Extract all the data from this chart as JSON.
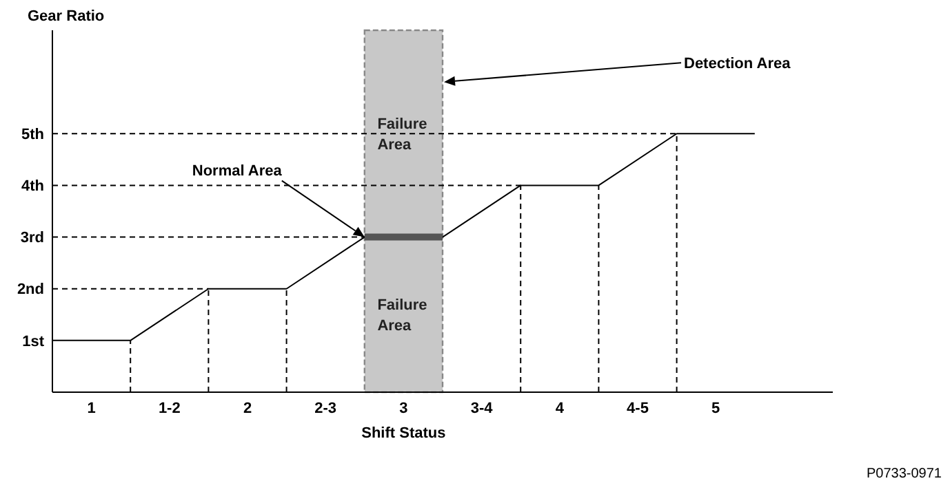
{
  "chart_data": {
    "type": "line",
    "ylabel": "Gear Ratio",
    "xlabel": "Shift Status",
    "x": [
      0.75,
      1.25,
      1.75,
      2.25,
      2.75,
      3.25,
      3.75,
      4.25,
      4.75,
      5.25
    ],
    "series": [
      {
        "color": "#000000",
        "values": [
          1,
          1,
          2,
          2,
          3,
          3,
          4,
          4,
          5,
          5
        ]
      },
      {
        "color": "#555555",
        "x": [
          2.75,
          3.25
        ],
        "values": [
          3,
          3
        ]
      },
      {
        "color": "#000000",
        "line_style": "dashed",
        "x": [
          1.25,
          1.25,
          null,
          1.75,
          1.75,
          null,
          2.25,
          2.25,
          null,
          3.75,
          3.75,
          null,
          4.25,
          4.25,
          null,
          4.75,
          4.75,
          null,
          0.75,
          1.75,
          null,
          0.75,
          2.75,
          null,
          0.75,
          3.75,
          null,
          0.75,
          4.75
        ],
        "values": [
          0,
          1,
          null,
          0,
          2,
          null,
          0,
          2,
          null,
          0,
          4,
          null,
          0,
          4,
          null,
          0,
          5,
          null,
          2,
          2,
          null,
          3,
          3,
          null,
          4,
          4,
          null,
          5,
          5
        ]
      }
    ],
    "xlim": [
      0.75,
      5.75
    ],
    "xticks": [
      1,
      {
        "value": 1.5,
        "label": "1-2"
      },
      2,
      {
        "value": 2.5,
        "label": "2-3"
      },
      3,
      {
        "value": 3.5,
        "label": "3-4"
      },
      4,
      {
        "value": 4.5,
        "label": "4-5"
      },
      5
    ],
    "ylim": [
      0,
      7
    ],
    "yticks": [
      {
        "value": 1,
        "label": "1st"
      },
      {
        "value": 2,
        "label": "2nd"
      },
      {
        "value": 3,
        "label": "3rd"
      },
      {
        "value": 4,
        "label": "4th"
      },
      {
        "value": 5,
        "label": "5th"
      }
    ],
    "bands": [
      {
        "axis": "x",
        "from": 2.75,
        "to": 3.25,
        "color": "#c8c8c8"
      }
    ],
    "annotations": [
      "Failure Area",
      "Failure Area",
      {
        "text": "Detection Area",
        "x": 3.25,
        "y": 6
      },
      {
        "text": "Normal Area",
        "x": 2.75,
        "y": 3
      },
      "P0733-0971"
    ],
    "line_style": "solid"
  }
}
